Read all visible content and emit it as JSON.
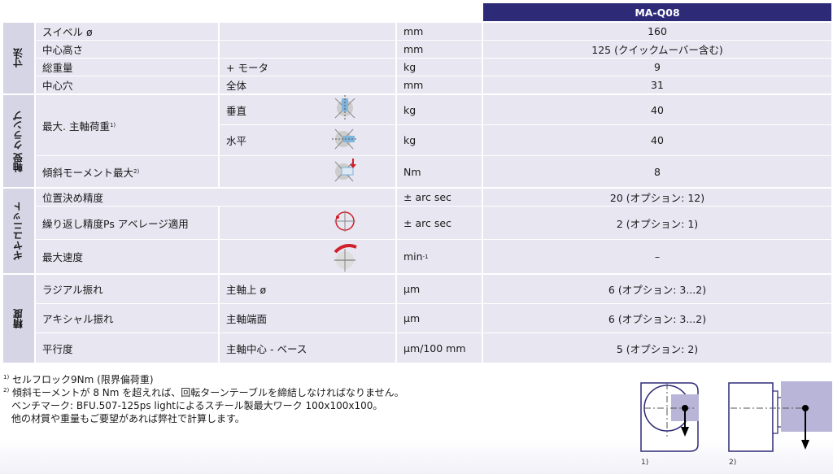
{
  "header": {
    "model": "MA-Q08"
  },
  "groups": {
    "dimensions": "寸法",
    "bearing": "軸受 クランプ",
    "gear": "ギヤユニット",
    "accuracy": "精度"
  },
  "rows": [
    {
      "param": "スイベル ø",
      "sub": "",
      "unit": "mm",
      "value": "160"
    },
    {
      "param": "中心高さ",
      "sub": "",
      "unit": "mm",
      "value": "125 (クイックムーバー含む)"
    },
    {
      "param": "総重量",
      "sub": "+ モータ",
      "unit": "kg",
      "value": "9"
    },
    {
      "param": "中心穴",
      "sub": "全体",
      "unit": "mm",
      "value": "31"
    },
    {
      "param": "最大. 主軸荷重",
      "sup": "1)",
      "sub": "垂直",
      "unit": "kg",
      "value": "40",
      "icon": "vertical-load-icon"
    },
    {
      "param": "",
      "sub": "水平",
      "unit": "kg",
      "value": "40",
      "icon": "horizontal-load-icon"
    },
    {
      "param": "傾斜モーメント最大",
      "sup": "2)",
      "sub": "",
      "unit": "Nm",
      "value": "8",
      "icon": "tilt-moment-icon"
    },
    {
      "param": "位置決め精度",
      "sub": "",
      "unit": "± arc sec",
      "value": "20 (オプション: 12)"
    },
    {
      "param": "繰り返し精度Ps アベレージ適用",
      "sub": "",
      "unit": "± arc sec",
      "value": "2 (オプション: 1)",
      "icon": "repeatability-icon"
    },
    {
      "param": "最大速度",
      "sub": "",
      "unit": "min",
      "unit_sup": "-1",
      "value": "–",
      "icon": "rotation-speed-icon"
    },
    {
      "param": "ラジアル振れ",
      "sub": "主軸上 ø",
      "unit": "µm",
      "value": "6 (オプション: 3...2)"
    },
    {
      "param": "アキシャル振れ",
      "sub": "主軸端面",
      "unit": "µm",
      "value": "6 (オプション: 3...2)"
    },
    {
      "param": "平行度",
      "sub": "主軸中心 - ベース",
      "unit": "µm/100 mm",
      "value": "5 (オプション: 2)"
    }
  ],
  "notes": {
    "n1_mark": "1)",
    "n1": "セルフロック9Nm (限界偏荷重)",
    "n2_mark": "2)",
    "n2": "傾斜モーメントが 8 Nm を超えれば、回転ターンテーブルを締結しなければなりません。",
    "n3": "ベンチマーク: BFU.507-125ps lightによるスチール製最大ワーク 100x100x100。",
    "n4": "他の材質や重量もご要望があれば弊社で計算します。"
  },
  "figures": {
    "fig1": "1)",
    "fig2": "2)"
  },
  "colors": {
    "header": "#2d2a78",
    "cell": "#e7e6f1",
    "group": "#d6d5e6",
    "accent_red": "#d0202a",
    "workpiece": "#b9b5d8"
  }
}
